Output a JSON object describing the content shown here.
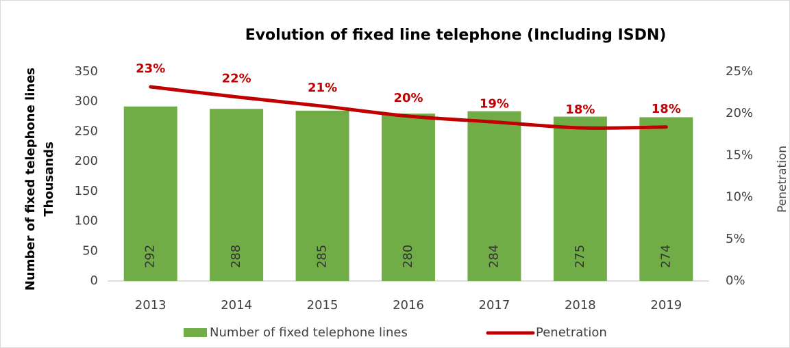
{
  "chart_data": {
    "type": "bar",
    "title": "Evolution of fixed line telephone (Including ISDN)",
    "ylabel": "Number of fixed telephone lines",
    "ylabel_unit": "Thousands",
    "y2label": "Penetration",
    "categories": [
      "2013",
      "2014",
      "2015",
      "2016",
      "2017",
      "2018",
      "2019"
    ],
    "series": [
      {
        "name": "Number of fixed telephone lines",
        "type": "bar",
        "color": "#70ad47",
        "values": [
          292,
          288,
          285,
          280,
          284,
          275,
          274
        ]
      },
      {
        "name": "Penetration",
        "type": "line",
        "axis": "y2",
        "color": "#c00000",
        "values": [
          23.2,
          22.0,
          20.9,
          19.7,
          19.0,
          18.3,
          18.4
        ],
        "value_labels": [
          "23%",
          "22%",
          "21%",
          "20%",
          "19%",
          "18%",
          "18%"
        ]
      }
    ],
    "ylim": [
      0,
      350
    ],
    "yticks": [
      0,
      50,
      100,
      150,
      200,
      250,
      300,
      350
    ],
    "y2lim": [
      0,
      25
    ],
    "y2ticks": [
      {
        "value": 0,
        "label": "0%"
      },
      {
        "value": 5,
        "label": "5%"
      },
      {
        "value": 10,
        "label": "10%"
      },
      {
        "value": 15,
        "label": "15%"
      },
      {
        "value": 20,
        "label": "20%"
      },
      {
        "value": 25,
        "label": "25%"
      }
    ],
    "grid": false,
    "legend": "bottom"
  }
}
